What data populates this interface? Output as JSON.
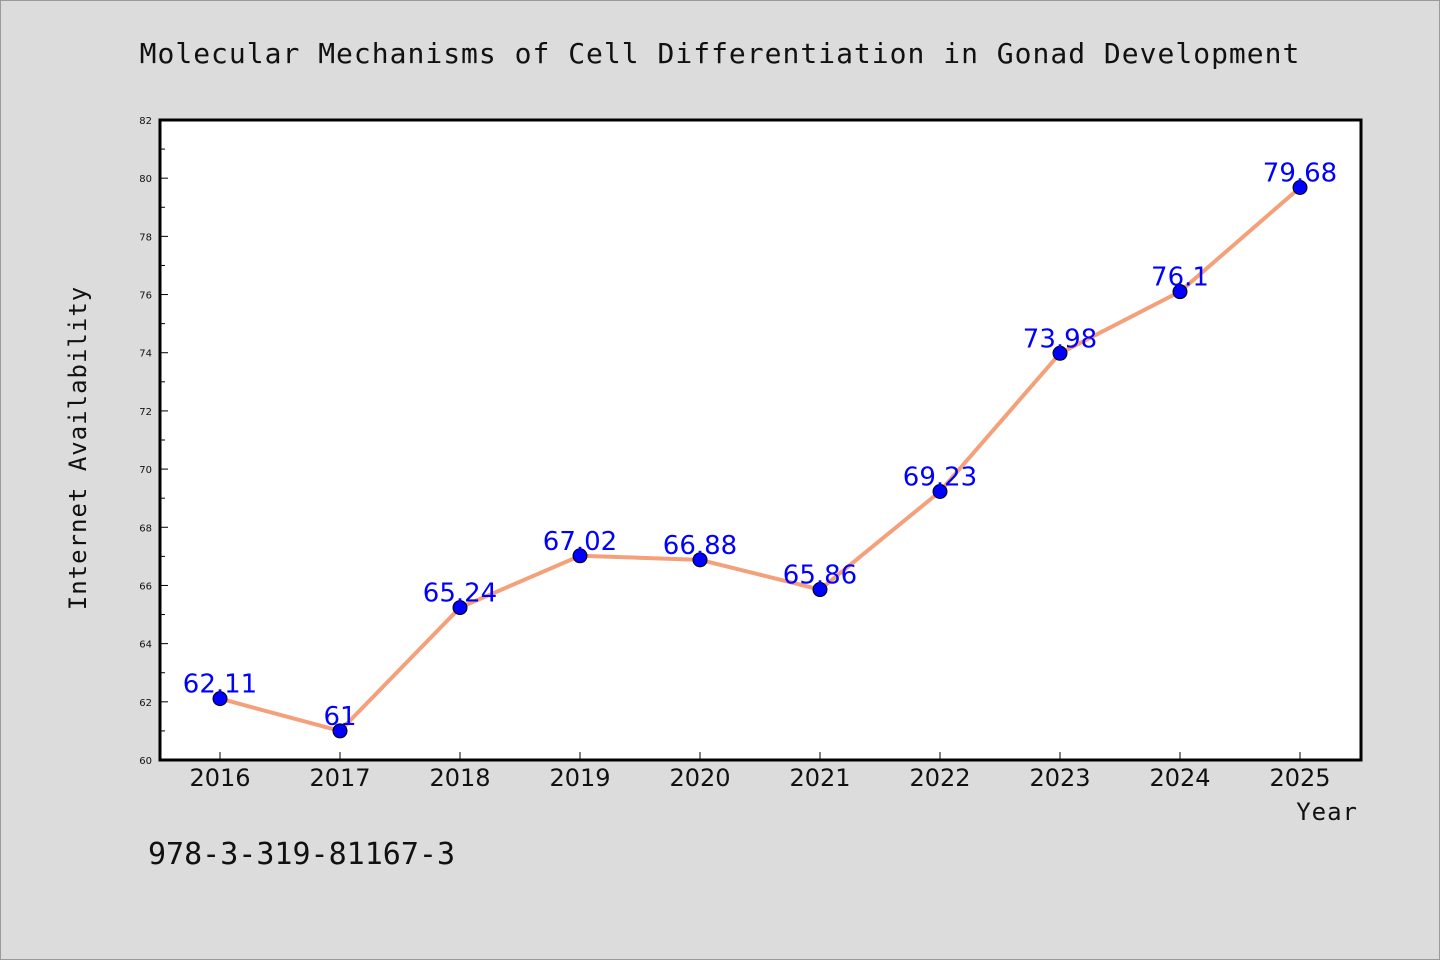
{
  "chart_data": {
    "type": "line",
    "title": "Molecular Mechanisms of Cell Differentiation in Gonad Development",
    "xlabel": "Year",
    "ylabel": "Internet Availability",
    "categories": [
      "2016",
      "2017",
      "2018",
      "2019",
      "2020",
      "2021",
      "2022",
      "2023",
      "2024",
      "2025"
    ],
    "series": [
      {
        "values": [
          62.11,
          61,
          65.24,
          67.02,
          66.88,
          65.86,
          69.23,
          73.98,
          76.1,
          79.68
        ]
      }
    ],
    "data_labels": [
      "62.11",
      "61",
      "65.24",
      "67.02",
      "66.88",
      "65.86",
      "69.23",
      "73.98",
      "76.1",
      "79.68"
    ],
    "ylim": [
      60,
      82
    ],
    "yticks": [
      60,
      62,
      64,
      66,
      68,
      70,
      72,
      74,
      76,
      78,
      80,
      82
    ],
    "grid": false,
    "legend": "none",
    "line_color": "#f4a07a",
    "marker_color": "#0000ff",
    "label_color": "#0000ff"
  },
  "annotation": "978-3-319-81167-3"
}
